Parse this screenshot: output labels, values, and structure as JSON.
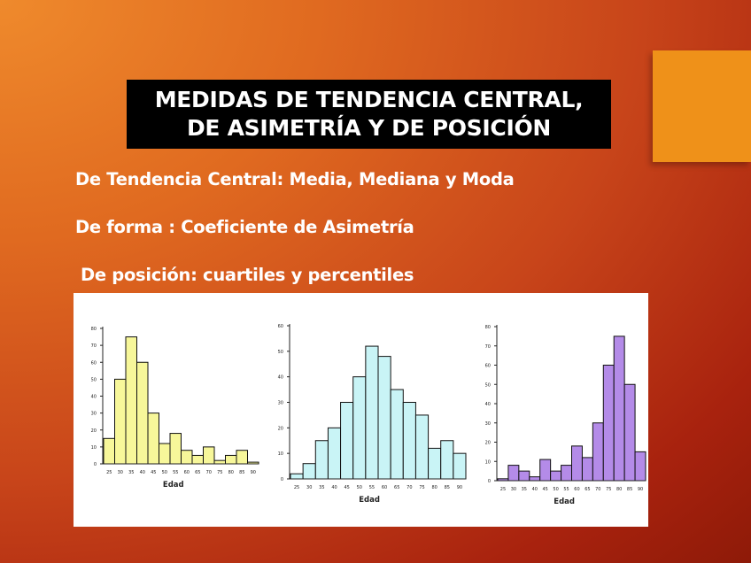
{
  "slide": {
    "title_line1": "MEDIDAS DE TENDENCIA CENTRAL,",
    "title_line2": "DE ASIMETRÍA Y DE POSICIÓN",
    "bullets": [
      "De Tendencia Central: Media, Mediana y Moda",
      "De forma : Coeficiente de Asimetría",
      "De posición: cuartiles y percentiles"
    ]
  },
  "colors": {
    "accent": "#ef9119",
    "title_bg": "#000000",
    "hist1_fill": "#f7f79a",
    "hist2_fill": "#c9f4f6",
    "hist3_fill": "#b48be8"
  },
  "chart_data": [
    {
      "type": "bar",
      "xlabel": "Edad",
      "ylabel": "",
      "ylim": [
        0,
        80
      ],
      "yticks": [
        "0",
        "10",
        "20",
        "30",
        "40",
        "50",
        "60",
        "70",
        "80"
      ],
      "categories": [
        "25",
        "30",
        "35",
        "40",
        "45",
        "50",
        "55",
        "60",
        "65",
        "70",
        "75",
        "80",
        "85",
        "90"
      ],
      "values": [
        15,
        50,
        75,
        60,
        30,
        12,
        18,
        8,
        5,
        10,
        2,
        5,
        8,
        1
      ]
    },
    {
      "type": "bar",
      "xlabel": "Edad",
      "ylabel": "",
      "ylim": [
        0,
        60
      ],
      "yticks": [
        "0",
        "10",
        "20",
        "30",
        "40",
        "50",
        "60"
      ],
      "categories": [
        "25",
        "30",
        "35",
        "40",
        "45",
        "50",
        "55",
        "60",
        "65",
        "70",
        "75",
        "80",
        "85",
        "90"
      ],
      "values": [
        2,
        6,
        15,
        20,
        30,
        40,
        52,
        48,
        35,
        30,
        25,
        12,
        15,
        10
      ]
    },
    {
      "type": "bar",
      "xlabel": "Edad",
      "ylabel": "",
      "ylim": [
        0,
        80
      ],
      "yticks": [
        "0",
        "10",
        "20",
        "30",
        "40",
        "50",
        "60",
        "70",
        "80"
      ],
      "categories": [
        "25",
        "30",
        "35",
        "40",
        "45",
        "50",
        "55",
        "60",
        "65",
        "70",
        "75",
        "80",
        "85",
        "90"
      ],
      "values": [
        1,
        8,
        5,
        2,
        11,
        5,
        8,
        18,
        12,
        30,
        60,
        75,
        50,
        15
      ]
    }
  ]
}
